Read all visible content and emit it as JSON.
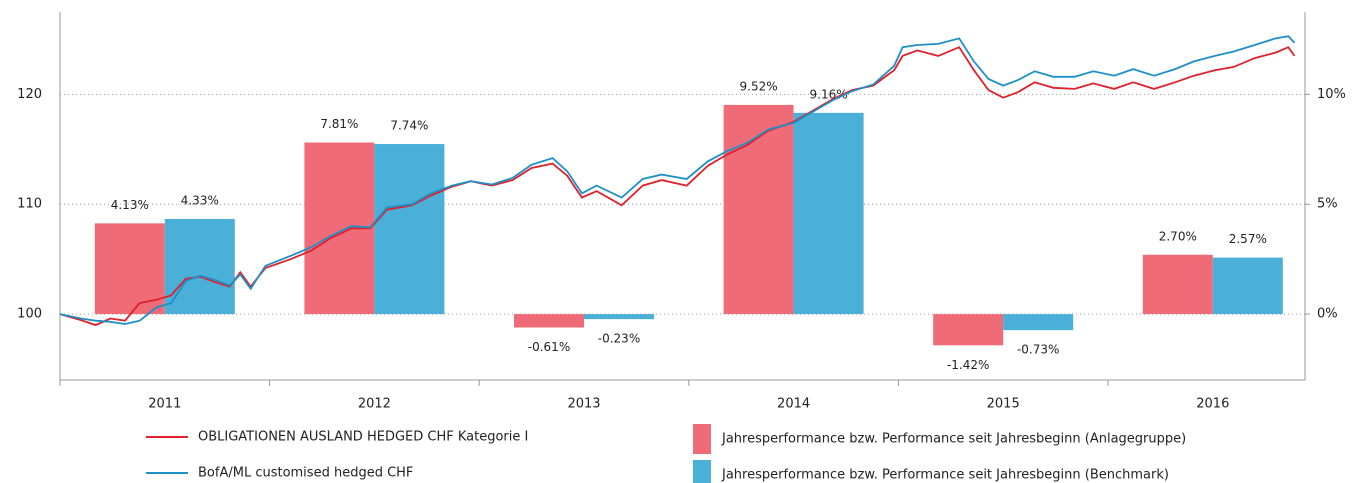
{
  "chart_data": {
    "type": "bar",
    "categories": [
      "2011",
      "2012",
      "2013",
      "2014",
      "2015",
      "2016"
    ],
    "xlim": [
      2011,
      2017
    ],
    "ylim": [
      94,
      127.5
    ],
    "yticks": [
      100,
      110,
      120
    ],
    "y2lim": [
      -3,
      13.75
    ],
    "y2ticks": [
      {
        "value": 0,
        "label": "0%"
      },
      {
        "value": 5,
        "label": "5%"
      },
      {
        "value": 10,
        "label": "10%"
      }
    ],
    "grid": true,
    "x": [
      2011.0,
      2011.1,
      2011.17,
      2011.24,
      2011.31,
      2011.38,
      2011.46,
      2011.53,
      2011.6,
      2011.67,
      2011.74,
      2011.81,
      2011.86,
      2011.91,
      2011.98,
      2012.1,
      2012.2,
      2012.29,
      2012.39,
      2012.48,
      2012.56,
      2012.68,
      2012.77,
      2012.87,
      2012.96,
      2013.06,
      2013.16,
      2013.25,
      2013.35,
      2013.42,
      2013.49,
      2013.56,
      2013.68,
      2013.78,
      2013.87,
      2013.99,
      2014.09,
      2014.18,
      2014.28,
      2014.38,
      2014.5,
      2014.59,
      2014.69,
      2014.78,
      2014.88,
      2014.98,
      2015.02,
      2015.09,
      2015.19,
      2015.29,
      2015.36,
      2015.43,
      2015.5,
      2015.57,
      2015.65,
      2015.74,
      2015.84,
      2015.93,
      2016.03,
      2016.12,
      2016.22,
      2016.32,
      2016.41,
      2016.51,
      2016.6,
      2016.7,
      2016.8,
      2016.86,
      2016.89
    ],
    "series": [
      {
        "name": "OBLIGATIONEN AUSLAND HEDGED CHF Kategorie I",
        "type": "line",
        "color": "#e0202a",
        "values": [
          100,
          99.45,
          99.0,
          99.6,
          99.4,
          101.0,
          101.3,
          101.7,
          103.2,
          103.4,
          102.9,
          102.5,
          103.8,
          102.5,
          104.2,
          105.0,
          105.8,
          106.9,
          107.8,
          107.8,
          109.5,
          109.9,
          110.8,
          111.6,
          112.1,
          111.7,
          112.2,
          113.3,
          113.7,
          112.6,
          110.6,
          111.2,
          109.9,
          111.7,
          112.2,
          111.7,
          113.5,
          114.5,
          115.4,
          116.7,
          117.5,
          118.5,
          119.6,
          120.4,
          120.8,
          122.2,
          123.5,
          124.0,
          123.5,
          124.3,
          122.2,
          120.4,
          119.7,
          120.2,
          121.1,
          120.6,
          120.5,
          121.0,
          120.5,
          121.1,
          120.5,
          121.1,
          121.7,
          122.2,
          122.5,
          123.3,
          123.8,
          124.3,
          123.5
        ]
      },
      {
        "name": "BofA/ML customised hedged CHF",
        "type": "line",
        "color": "#1e90c8",
        "values": [
          100,
          99.6,
          99.4,
          99.3,
          99.1,
          99.4,
          100.6,
          101.0,
          103.0,
          103.5,
          103.1,
          102.6,
          103.6,
          102.3,
          104.4,
          105.3,
          106.1,
          107.1,
          108.0,
          107.9,
          109.7,
          110.0,
          111.0,
          111.7,
          112.1,
          111.8,
          112.4,
          113.6,
          114.2,
          113.0,
          111.0,
          111.7,
          110.6,
          112.3,
          112.7,
          112.3,
          113.9,
          114.8,
          115.6,
          116.8,
          117.4,
          118.4,
          119.5,
          120.3,
          120.9,
          122.6,
          124.3,
          124.5,
          124.6,
          125.1,
          123.0,
          121.4,
          120.8,
          121.3,
          122.1,
          121.6,
          121.6,
          122.1,
          121.7,
          122.3,
          121.7,
          122.3,
          123.0,
          123.5,
          123.9,
          124.5,
          125.1,
          125.3,
          124.7
        ]
      },
      {
        "name": "Jahresperformance bzw. Performance seit Jahresbeginn (Anlagegruppe)",
        "type": "bar",
        "axis": "y2",
        "color": "#f06b78",
        "values": [
          4.13,
          7.81,
          -0.61,
          9.52,
          -1.42,
          2.7
        ],
        "value_labels": [
          "4.13%",
          "7.81%",
          "-0.61%",
          "9.52%",
          "-1.42%",
          "2.70%"
        ]
      },
      {
        "name": "Jahresperformance bzw. Performance seit Jahresbeginn (Benchmark)",
        "type": "bar",
        "axis": "y2",
        "color": "#4ab0d8",
        "values": [
          4.33,
          7.74,
          -0.23,
          9.16,
          -0.73,
          2.57
        ],
        "value_labels": [
          "4.33%",
          "7.74%",
          "-0.23%",
          "9.16%",
          "-0.73%",
          "2.57%"
        ]
      }
    ]
  }
}
